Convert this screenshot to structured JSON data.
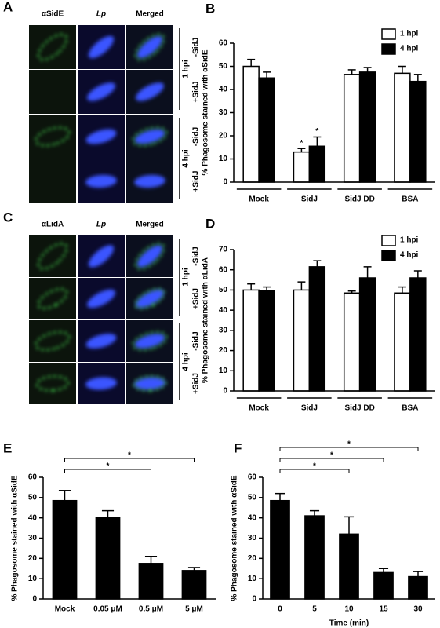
{
  "micrographs": [
    {
      "panel_label": "A",
      "columns": [
        "αSidE",
        "Lp",
        "Merged"
      ],
      "rows": [
        "-SidJ",
        "+SidJ",
        "-SidJ",
        "+SidJ"
      ],
      "groups": [
        "1 hpi",
        "4 hpi"
      ]
    },
    {
      "panel_label": "C",
      "columns": [
        "αLidA",
        "Lp",
        "Merged"
      ],
      "rows": [
        "-SidJ",
        "+SidJ",
        "-SidJ",
        "+SidJ"
      ],
      "groups": [
        "1 hpi",
        "4 hpi"
      ]
    }
  ],
  "chart_data": [
    {
      "type": "bar",
      "panel_label": "B",
      "ylabel": "% Phagosome stained with αSidE",
      "categories": [
        "Mock",
        "SidJ",
        "SidJ DD",
        "BSA"
      ],
      "series": [
        {
          "name": "1 hpi",
          "color": "#ffffff",
          "values": [
            50,
            13,
            46.5,
            47
          ],
          "errors": [
            3,
            1.5,
            2,
            3
          ],
          "markers": [
            null,
            "*",
            null,
            null
          ]
        },
        {
          "name": "4 hpi",
          "color": "#000000",
          "values": [
            45,
            15.5,
            47.5,
            43.5
          ],
          "errors": [
            2.5,
            4,
            2,
            3
          ],
          "markers": [
            null,
            "*",
            null,
            null
          ]
        }
      ],
      "ylim": [
        0,
        60
      ],
      "yticks": [
        0,
        10,
        20,
        30,
        40,
        50,
        60
      ],
      "legend": "upper right",
      "category_brackets": true
    },
    {
      "type": "bar",
      "panel_label": "D",
      "ylabel": "% Phagosome stained with αLidA",
      "categories": [
        "Mock",
        "SidJ",
        "SidJ DD",
        "BSA"
      ],
      "series": [
        {
          "name": "1 hpi",
          "color": "#ffffff",
          "values": [
            50,
            50,
            48.5,
            48.5
          ],
          "errors": [
            3,
            4,
            1,
            3
          ]
        },
        {
          "name": "4 hpi",
          "color": "#000000",
          "values": [
            49.5,
            61.5,
            56,
            56
          ],
          "errors": [
            2,
            3,
            5.5,
            3.5
          ]
        }
      ],
      "ylim": [
        0,
        70
      ],
      "yticks": [
        0,
        10,
        20,
        30,
        40,
        50,
        60,
        70
      ],
      "legend": "upper right",
      "category_brackets": true
    },
    {
      "type": "bar",
      "panel_label": "E",
      "ylabel": "% Phagosome stained with αSidE",
      "categories": [
        "Mock",
        "0.05 μM",
        "0.5 μM",
        "5 μM"
      ],
      "values": [
        48.5,
        40,
        17.5,
        14
      ],
      "errors": [
        5,
        3.5,
        3.5,
        1.5
      ],
      "color": "#000000",
      "comparison_labels": [
        null,
        null,
        "*",
        "*"
      ],
      "ylim": [
        0,
        60
      ],
      "yticks": [
        0,
        10,
        20,
        30,
        40,
        50,
        60
      ]
    },
    {
      "type": "bar",
      "panel_label": "F",
      "ylabel": "% Phagosome stained with αSidE",
      "xlabel": "Time (min)",
      "categories": [
        "0",
        "5",
        "10",
        "15",
        "30"
      ],
      "values": [
        48.5,
        41,
        32,
        13,
        11
      ],
      "errors": [
        3.5,
        2.5,
        8.5,
        2,
        2.5
      ],
      "color": "#000000",
      "comparison_labels": [
        null,
        null,
        "*",
        "*",
        "*"
      ],
      "ylim": [
        0,
        60
      ],
      "yticks": [
        0,
        10,
        20,
        30,
        40,
        50,
        60
      ]
    }
  ]
}
